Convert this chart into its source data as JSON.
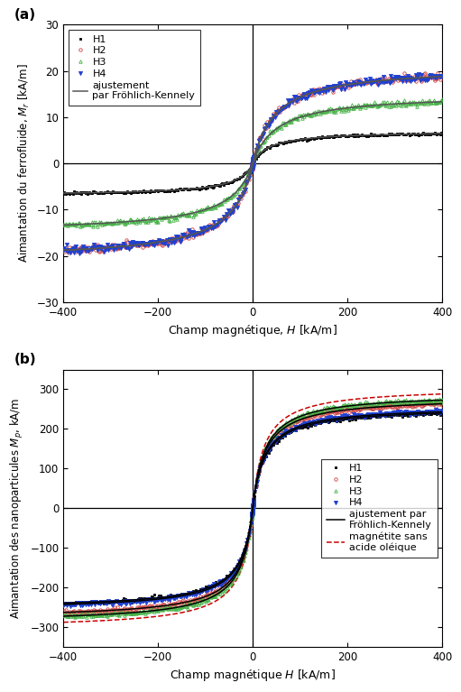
{
  "fig_width": 5.11,
  "fig_height": 7.67,
  "dpi": 100,
  "panel_a": {
    "label": "(a)",
    "xlabel": "Champ magnétique, $H$ [kA/m]",
    "ylabel": "Aimantation du ferrofluide, $M_r$ [kA/m]",
    "xlim": [
      -400,
      400
    ],
    "ylim": [
      -30,
      30
    ],
    "xticks": [
      -400,
      -200,
      0,
      200,
      400
    ],
    "yticks": [
      -30,
      -20,
      -10,
      0,
      10,
      20,
      30
    ],
    "series": {
      "H1": {
        "color": "#000000",
        "marker": "s",
        "ms": 2.0,
        "filled": true,
        "sat": 7.0,
        "chi": 0.2
      },
      "H2": {
        "color": "#d04040",
        "marker": "o",
        "ms": 2.5,
        "filled": false,
        "sat": 21.0,
        "chi": 0.45
      },
      "H3": {
        "color": "#40b040",
        "marker": "^",
        "ms": 2.5,
        "filled": false,
        "sat": 15.0,
        "chi": 0.3
      },
      "H4": {
        "color": "#2040d0",
        "marker": "v",
        "ms": 3.0,
        "filled": true,
        "sat": 21.0,
        "chi": 0.45
      }
    },
    "fit_color": "#555555",
    "legend_loc": "upper left"
  },
  "panel_b": {
    "label": "(b)",
    "xlabel": "Champ magnétique $H$ [kA/m]",
    "ylabel": "Aimantation des nanoparticules $M_p$, kA/m",
    "xlim": [
      -400,
      400
    ],
    "ylim": [
      -350,
      350
    ],
    "xticks": [
      -400,
      -200,
      0,
      200,
      400
    ],
    "yticks": [
      -300,
      -200,
      -100,
      0,
      100,
      200,
      300
    ],
    "series": {
      "H1": {
        "color": "#000000",
        "marker": "s",
        "ms": 2.0,
        "filled": true,
        "sat": 255.0,
        "chi": 10.0
      },
      "H2": {
        "color": "#d04040",
        "marker": "o",
        "ms": 2.5,
        "filled": false,
        "sat": 280.0,
        "chi": 11.0
      },
      "H3": {
        "color": "#40b040",
        "marker": "^",
        "ms": 2.5,
        "filled": false,
        "sat": 290.0,
        "chi": 11.5
      },
      "H4": {
        "color": "#2040d0",
        "marker": "v",
        "ms": 3.0,
        "filled": true,
        "sat": 258.0,
        "chi": 10.5
      }
    },
    "mag_sans_oleique": {
      "sat": 305.0,
      "chi": 13.0
    },
    "fit_color": "#000000",
    "dashed_color": "#cc0000",
    "legend_loc": "center right"
  }
}
